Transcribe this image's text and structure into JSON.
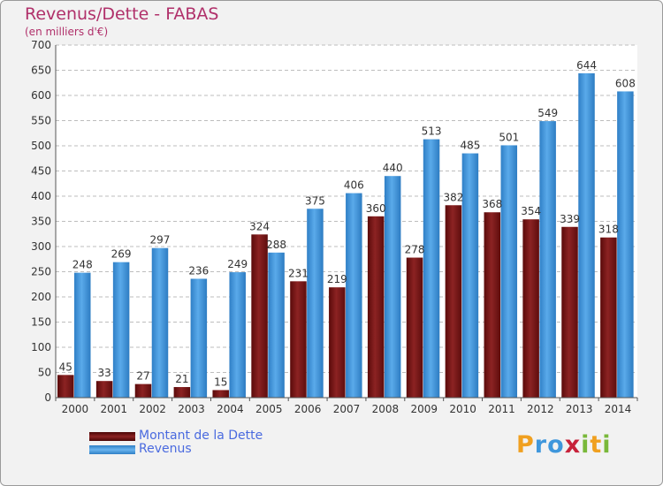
{
  "header": {
    "title": "Revenus/Dette - FABAS",
    "subtitle": "(en milliers d'€)"
  },
  "colors": {
    "debt": "#7a1616",
    "revenue": "#3f97dc",
    "title": "#b0306a",
    "legend_text": "#4a6adf"
  },
  "chart_data": {
    "type": "bar",
    "title": "Revenus/Dette - FABAS",
    "subtitle": "(en milliers d'€)",
    "xlabel": "",
    "ylabel": "",
    "ylim": [
      0,
      700
    ],
    "yticks": [
      0,
      50,
      100,
      150,
      200,
      250,
      300,
      350,
      400,
      450,
      500,
      550,
      600,
      650,
      700
    ],
    "grid": true,
    "legend_position": "bottom-left",
    "categories": [
      "2000",
      "2001",
      "2002",
      "2003",
      "2004",
      "2005",
      "2006",
      "2007",
      "2008",
      "2009",
      "2010",
      "2011",
      "2012",
      "2013",
      "2014"
    ],
    "series": [
      {
        "name": "Montant de la Dette",
        "values": [
          45,
          33,
          27,
          21,
          15,
          324,
          231,
          219,
          360,
          278,
          382,
          368,
          354,
          339,
          318
        ]
      },
      {
        "name": "Revenus",
        "values": [
          248,
          269,
          297,
          236,
          249,
          288,
          375,
          406,
          440,
          513,
          485,
          501,
          549,
          644,
          608
        ]
      }
    ]
  },
  "logo": {
    "letters": [
      {
        "ch": "P",
        "color": "#f0a020"
      },
      {
        "ch": "r",
        "color": "#3f97dc"
      },
      {
        "ch": "o",
        "color": "#3f97dc"
      },
      {
        "ch": "x",
        "color": "#c7223a"
      },
      {
        "ch": "i",
        "color": "#79b83a"
      },
      {
        "ch": "t",
        "color": "#f0a020"
      },
      {
        "ch": "i",
        "color": "#79b83a"
      }
    ]
  }
}
